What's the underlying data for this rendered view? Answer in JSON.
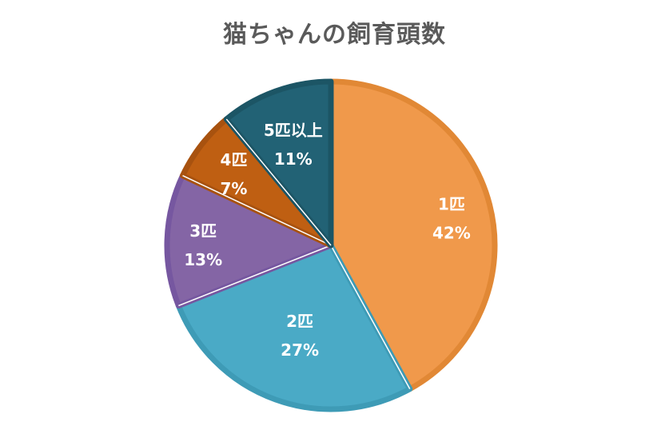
{
  "chart_data": {
    "type": "pie",
    "title": "猫ちゃんの飼育頭数",
    "categories": [
      "1匹",
      "2匹",
      "3匹",
      "4匹",
      "5匹以上"
    ],
    "values": [
      42,
      27,
      13,
      7,
      11
    ],
    "value_labels": [
      "42%",
      "27%",
      "13%",
      "7%",
      "11%"
    ],
    "colors": [
      "#F0994B",
      "#4AAAC6",
      "#8465A5",
      "#BF5F12",
      "#226275"
    ],
    "border_colors": [
      "#E18835",
      "#3E9BB6",
      "#7657A0",
      "#A8520F",
      "#1C5565"
    ],
    "legend": "none"
  }
}
